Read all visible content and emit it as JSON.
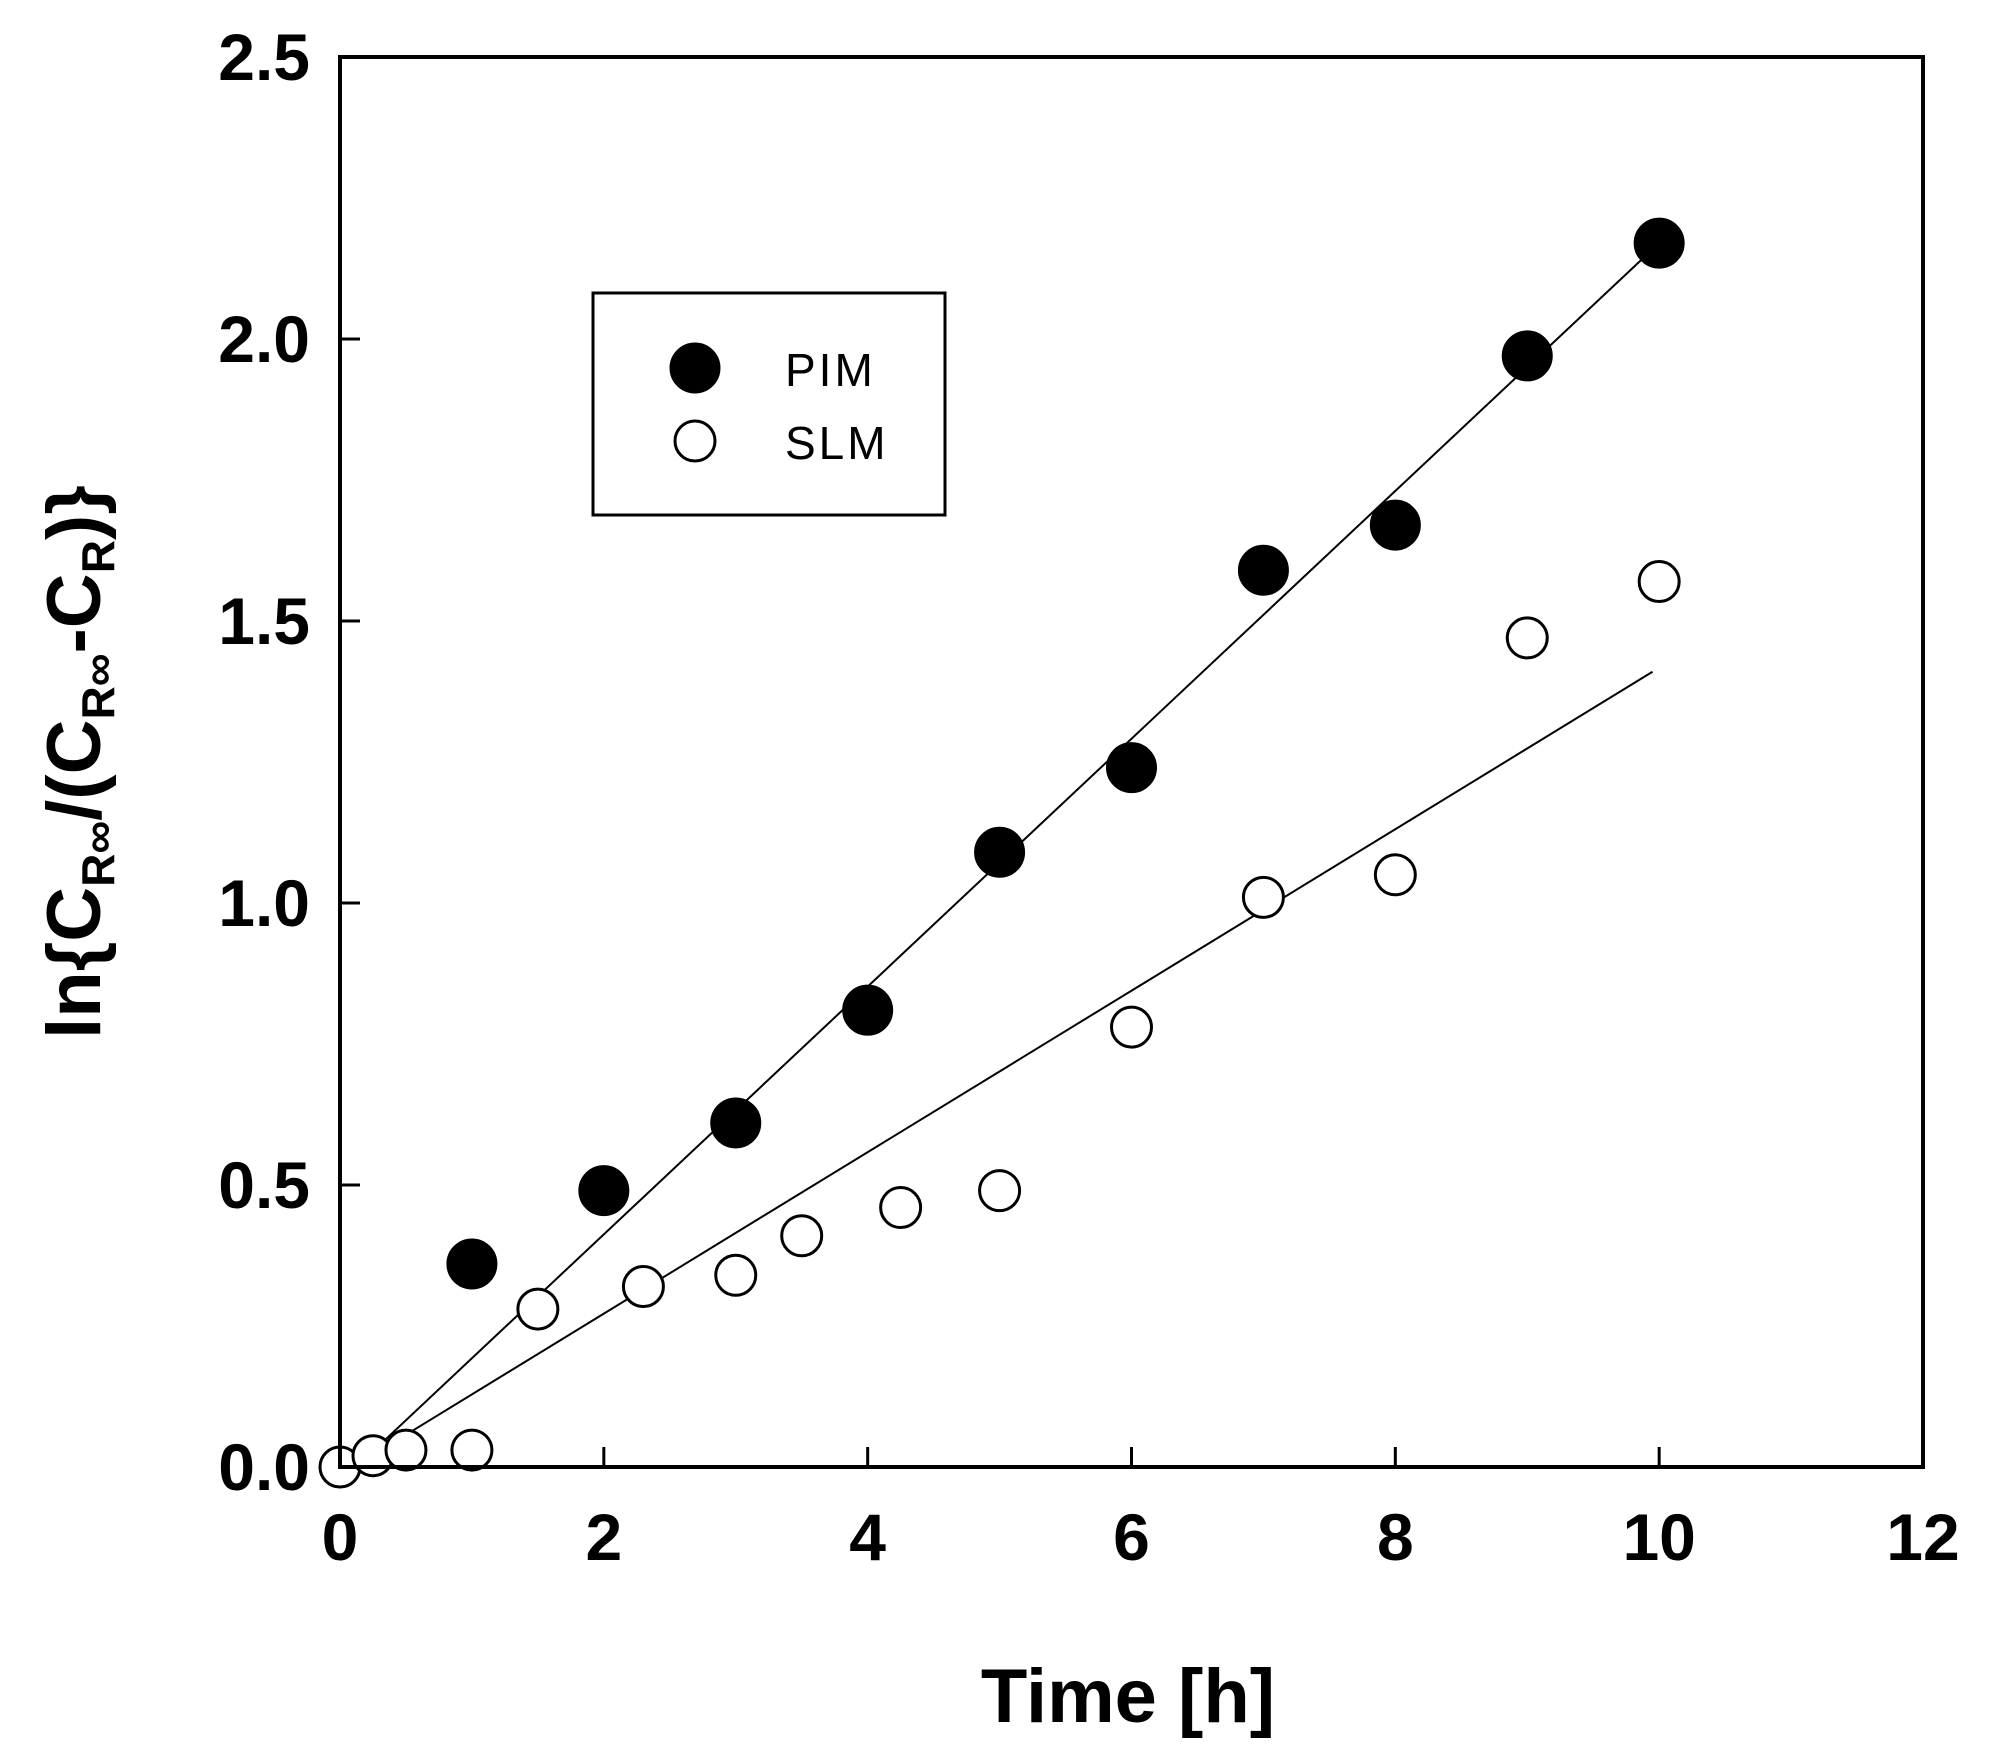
{
  "chart_data": {
    "type": "scatter",
    "title": "",
    "xlabel": "Time [h]",
    "ylabel": {
      "prefix": "ln{C",
      "sub1": "R∞",
      "mid": "/(C",
      "sub2": "R∞",
      "mid2": "-C",
      "sub3": "R",
      "suffix": ")}"
    },
    "xlim": [
      0,
      12
    ],
    "ylim": [
      0,
      2.5
    ],
    "x_ticks": [
      "0",
      "2",
      "4",
      "6",
      "8",
      "10",
      "12"
    ],
    "y_ticks": [
      "0.0",
      "0.5",
      "1.0",
      "1.5",
      "2.0",
      "2.5"
    ],
    "x_tick_values": [
      0,
      2,
      4,
      6,
      8,
      10,
      12
    ],
    "y_tick_values": [
      0,
      0.5,
      1.0,
      1.5,
      2.0,
      2.5
    ],
    "grid": false,
    "legend_position": "upper-left",
    "series": [
      {
        "name": "PIM",
        "marker": "filled-circle",
        "x": [
          1,
          2,
          3,
          4,
          5,
          6,
          7,
          8,
          9,
          10
        ],
        "y": [
          0.36,
          0.49,
          0.61,
          0.81,
          1.09,
          1.24,
          1.59,
          1.67,
          1.97,
          2.17
        ],
        "fit_line": {
          "x0": 0.35,
          "y0": 0.05,
          "x1": 10,
          "y1": 2.17
        }
      },
      {
        "name": "SLM",
        "marker": "open-circle",
        "x": [
          0,
          0.25,
          0.5,
          1,
          1.5,
          2.3,
          3,
          3.5,
          4.25,
          5,
          6,
          7,
          8,
          9,
          10
        ],
        "y": [
          0.0,
          0.02,
          0.03,
          0.03,
          0.28,
          0.32,
          0.34,
          0.41,
          0.46,
          0.49,
          0.78,
          1.01,
          1.05,
          1.47,
          1.57
        ],
        "fit_line": {
          "x0": 0.45,
          "y0": 0.05,
          "x1": 9.95,
          "y1": 1.41
        }
      }
    ]
  }
}
